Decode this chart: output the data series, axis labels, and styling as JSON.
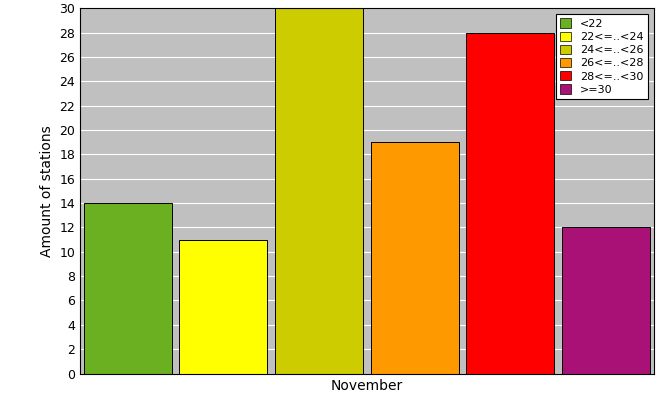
{
  "categories": [
    "<22",
    "22<=..<24",
    "24<=..<26",
    "26<=..<28",
    "28<=..<30",
    ">=30"
  ],
  "values": [
    14,
    11,
    30,
    19,
    28,
    12
  ],
  "bar_colors": [
    "#6ab020",
    "#ffff00",
    "#cccc00",
    "#ff9900",
    "#ff0000",
    "#aa1177"
  ],
  "xlabel": "November",
  "ylabel": "Amount of stations",
  "ylim": [
    0,
    30
  ],
  "yticks": [
    0,
    2,
    4,
    6,
    8,
    10,
    12,
    14,
    16,
    18,
    20,
    22,
    24,
    26,
    28,
    30
  ],
  "plot_bg_color": "#c0c0c0",
  "fig_bg_color": "#ffffff",
  "legend_labels": [
    "<22",
    "22<=..<24",
    "24<=..<26",
    "26<=..<28",
    "28<=..<30",
    ">=30"
  ],
  "legend_colors": [
    "#6ab020",
    "#ffff00",
    "#cccc00",
    "#ff9900",
    "#ff0000",
    "#aa1177"
  ],
  "axis_fontsize": 10,
  "tick_fontsize": 9,
  "legend_fontsize": 8
}
